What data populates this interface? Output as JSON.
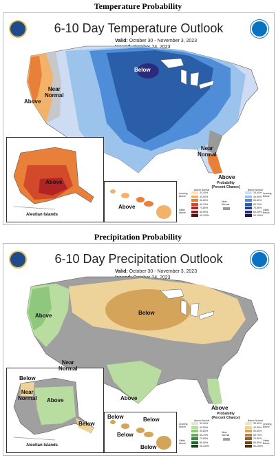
{
  "temperature": {
    "heading": "Temperature Probability",
    "title": "6-10 Day Temperature Outlook",
    "valid_label": "Valid:",
    "valid_dates": "October 30 - November 3, 2023",
    "issued_label": "Issued:",
    "issued_date": "October 24, 2023",
    "labels": {
      "below": "Below",
      "near_normal_west": "Near\nNormal",
      "above_west": "Above",
      "near_normal_east": "Near\nNormal",
      "above_florida": "Above",
      "above_alaska": "Above",
      "above_hawaii": "Above",
      "aleutian": "Aleutian Islands"
    },
    "legend": {
      "title": "Probability\n(Percent Chance)",
      "above_col": "Above Normal",
      "below_col": "Below Normal",
      "leaning_above": "Leaning\nAbove",
      "likely_above": "Likely\nAbove",
      "near_normal": "Near\nNormal",
      "leaning_below": "Leaning\nBelow",
      "likely_below": "Likely\nBelow",
      "ranges": [
        "33-40%",
        "40-50%",
        "50-60%",
        "60-70%",
        "70-80%",
        "80-90%",
        "90-100%"
      ]
    },
    "colors": {
      "below_dark": "#2a5ea9",
      "below_mid": "#4f8dd8",
      "below_light": "#9cc3ec",
      "below_lightest": "#cddcf2",
      "above_light": "#f3b26a",
      "above_mid": "#e8803a",
      "above_dark": "#d34a2a",
      "above_deep": "#b02424",
      "near_normal": "#9a9a9a",
      "below_core": "#2c2a7a"
    }
  },
  "precipitation": {
    "heading": "Precipitation Probability",
    "title": "6-10 Day Precipitation Outlook",
    "valid_label": "Valid:",
    "valid_dates": "October 30 - November 3, 2023",
    "issued_label": "Issued:",
    "issued_date": "October 24, 2023",
    "labels": {
      "above_west": "Above",
      "below_center": "Below",
      "near_normal": "Near\nNormal",
      "above_texas": "Above",
      "above_florida": "Above",
      "below_ak_1": "Below",
      "near_normal_ak": "Near\nNormal",
      "above_ak": "Above",
      "below_ak_2": "Below",
      "below_hi_1": "Below",
      "below_hi_2": "Below",
      "below_hi_3": "Below",
      "below_hi_4": "Below",
      "aleutian": "Aleutian Islands"
    },
    "legend": {
      "title": "Probability\n(Percent Chance)",
      "above_col": "Above Normal",
      "below_col": "Below Normal",
      "leaning_above": "Leaning\nAbove",
      "likely_above": "Likely\nAbove",
      "near_normal": "Near\nNormal",
      "leaning_below": "Leaning\nBelow",
      "likely_below": "Likely\nBelow",
      "ranges": [
        "33-40%",
        "40-50%",
        "50-60%",
        "60-70%",
        "70-80%",
        "80-90%",
        "90-100%"
      ]
    },
    "colors": {
      "above_light": "#b9dca0",
      "above_mid": "#8fc77d",
      "below_light": "#edd29a",
      "below_mid": "#d4a45a",
      "near_normal": "#a0a0a0"
    }
  }
}
